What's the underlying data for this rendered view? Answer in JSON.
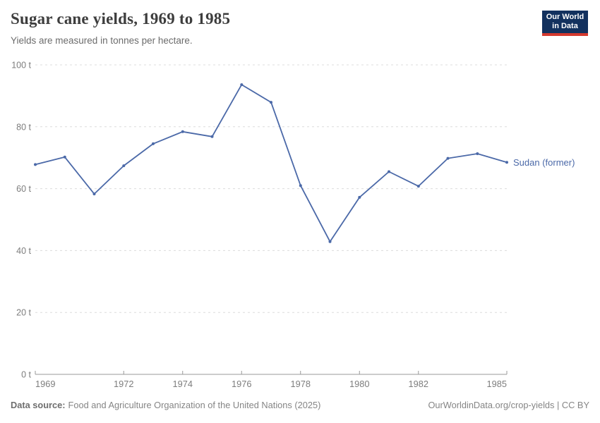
{
  "header": {
    "title": "Sugar cane yields, 1969 to 1985",
    "subtitle": "Yields are measured in tonnes per hectare.",
    "logo": {
      "line1": "Our World",
      "line2": "in Data"
    }
  },
  "chart_data": {
    "type": "line",
    "title": "Sugar cane yields, 1969 to 1985",
    "subtitle": "Yields are measured in tonnes per hectare.",
    "unit": "tonnes per hectare",
    "x": [
      1969,
      1970,
      1971,
      1972,
      1973,
      1974,
      1975,
      1976,
      1977,
      1978,
      1979,
      1980,
      1981,
      1982,
      1983,
      1984,
      1985
    ],
    "series": [
      {
        "name": "Sudan (former)",
        "values": [
          67.8,
          70.2,
          58.3,
          67.4,
          74.5,
          78.4,
          76.8,
          93.6,
          87.9,
          61.0,
          42.9,
          57.2,
          65.5,
          60.8,
          69.8,
          71.3,
          68.5
        ]
      }
    ],
    "ylim": [
      0,
      100
    ],
    "yticks": [
      0,
      20,
      40,
      60,
      80,
      100
    ],
    "ytick_suffix": " t",
    "xticks": [
      1969,
      1972,
      1974,
      1976,
      1978,
      1980,
      1982,
      1985
    ],
    "grid": "horizontal-dashed",
    "legend": "line-end-label"
  },
  "footer": {
    "source_label": "Data source:",
    "source_text": "Food and Agriculture Organization of the United Nations (2025)",
    "right_text": "OurWorldinData.org/crop-yields | CC BY"
  },
  "colors": {
    "series_blue": "#4b69a8",
    "grid": "#dcdcdc",
    "axis": "#999999",
    "tick_label": "#7d7d7d",
    "title": "#3d3d3d",
    "subtitle": "#6c6c6c",
    "footer": "#858585",
    "logo_navy": "#12315e",
    "logo_red": "#d4392e"
  }
}
